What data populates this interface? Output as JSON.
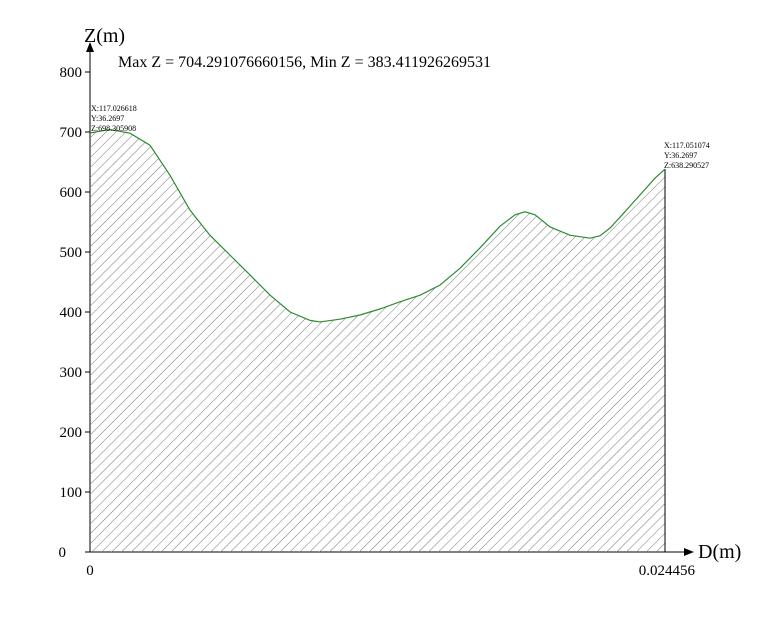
{
  "chart_data": {
    "type": "area",
    "x_label": "D(m)",
    "y_label": "Z(m)",
    "annotation": "Max Z = 704.291076660156, Min Z = 383.411926269531",
    "start_label": [
      "X:117.026618",
      "Y:36.2697",
      "Z:698.305908"
    ],
    "end_label": [
      "X:117.051074",
      "Y:36.2697",
      "Z:638.290527"
    ],
    "x": [
      0,
      0.00085,
      0.0017,
      0.00255,
      0.0034,
      0.00425,
      0.0051,
      0.00595,
      0.0068,
      0.00766,
      0.00851,
      0.00936,
      0.00978,
      0.01063,
      0.01148,
      0.01233,
      0.01318,
      0.01404,
      0.01489,
      0.01574,
      0.01659,
      0.01744,
      0.01808,
      0.0185,
      0.01893,
      0.01956,
      0.02041,
      0.02127,
      0.02169,
      0.02212,
      0.02275,
      0.02339,
      0.02403,
      0.024456
    ],
    "values": [
      698.305908,
      704.291,
      698,
      678,
      628,
      570,
      528,
      495,
      462,
      428,
      400,
      386,
      383.412,
      388,
      395,
      405,
      417,
      428,
      445,
      473,
      507,
      543,
      562,
      567,
      562,
      542,
      528,
      523,
      527,
      540,
      567,
      595,
      623,
      638.290527
    ],
    "color": "#2e8b2e",
    "xlim": [
      0,
      0.024456
    ],
    "xticks": [
      0,
      0.024456
    ],
    "ylim": [
      0,
      800
    ],
    "yticks": [
      0,
      100,
      200,
      300,
      400,
      500,
      600,
      700,
      800
    ]
  }
}
